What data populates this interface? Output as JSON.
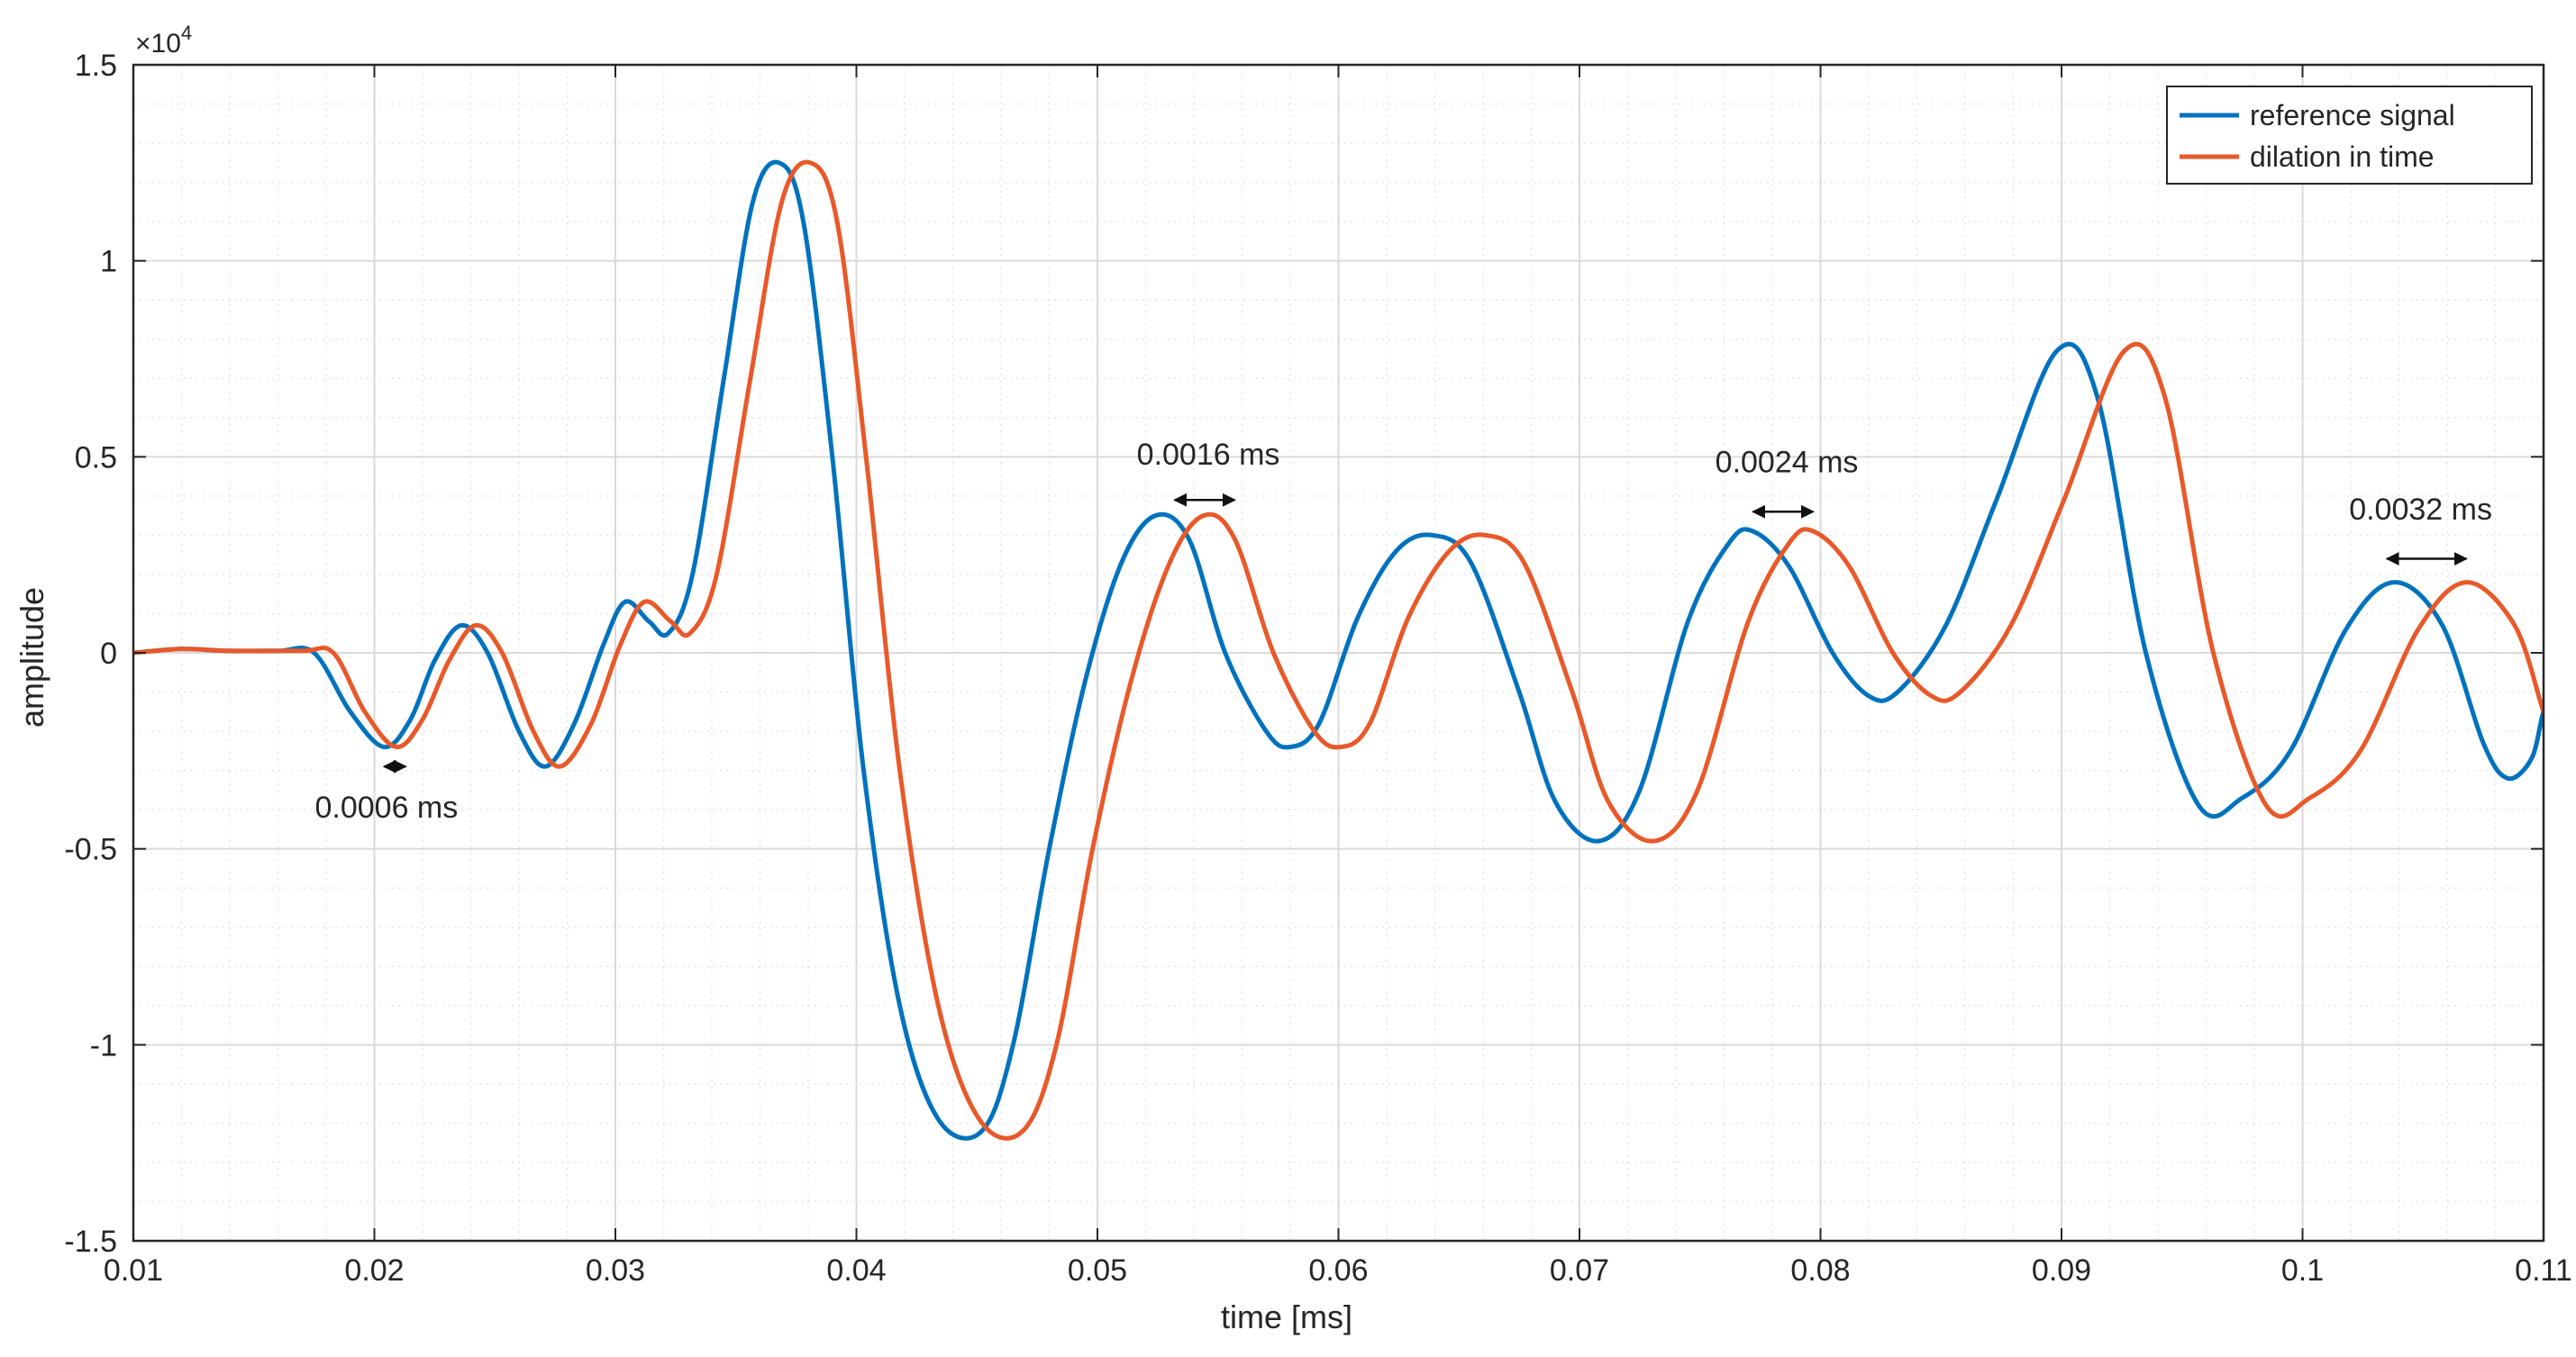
{
  "chart_data": {
    "type": "line",
    "title": "",
    "xlabel": "time [ms]",
    "ylabel": "amplitude",
    "xlim": [
      0.01,
      0.11
    ],
    "ylim": [
      -15000,
      15000
    ],
    "y_exponent_label": "×10",
    "y_exponent_power": "4",
    "x_ticks": [
      0.01,
      0.02,
      0.03,
      0.04,
      0.05,
      0.06,
      0.07,
      0.08,
      0.09,
      0.1,
      0.11
    ],
    "x_tick_labels": [
      "0.01",
      "0.02",
      "0.03",
      "0.04",
      "0.05",
      "0.06",
      "0.07",
      "0.08",
      "0.09",
      "0.1",
      "0.11"
    ],
    "y_ticks": [
      -15000,
      -10000,
      -5000,
      0,
      5000,
      10000,
      15000
    ],
    "y_tick_labels": [
      "-1.5",
      "-1",
      "-0.5",
      "0",
      "0.5",
      "1",
      "1.5"
    ],
    "grid": true,
    "minor_grid": true,
    "legend_position": "top-right",
    "series": [
      {
        "name": "reference signal",
        "color": "#0072BD",
        "points": [
          [
            0.01,
            0
          ],
          [
            0.012,
            100
          ],
          [
            0.014,
            50
          ],
          [
            0.016,
            50
          ],
          [
            0.0175,
            0
          ],
          [
            0.019,
            -1500
          ],
          [
            0.0204,
            -2400
          ],
          [
            0.0215,
            -1700
          ],
          [
            0.0225,
            -200
          ],
          [
            0.0236,
            700
          ],
          [
            0.0247,
            0
          ],
          [
            0.026,
            -2000
          ],
          [
            0.0271,
            -2900
          ],
          [
            0.0283,
            -1800
          ],
          [
            0.0295,
            200
          ],
          [
            0.0304,
            1300
          ],
          [
            0.0314,
            800
          ],
          [
            0.0322,
            500
          ],
          [
            0.0332,
            2000
          ],
          [
            0.0345,
            7000
          ],
          [
            0.0357,
            11500
          ],
          [
            0.0368,
            12500
          ],
          [
            0.0378,
            11000
          ],
          [
            0.039,
            5000
          ],
          [
            0.0403,
            -3000
          ],
          [
            0.0418,
            -9000
          ],
          [
            0.0434,
            -11900
          ],
          [
            0.0452,
            -12200
          ],
          [
            0.0465,
            -10000
          ],
          [
            0.048,
            -5000
          ],
          [
            0.0495,
            -700
          ],
          [
            0.051,
            2300
          ],
          [
            0.0524,
            3500
          ],
          [
            0.0538,
            2900
          ],
          [
            0.0553,
            0
          ],
          [
            0.057,
            -2000
          ],
          [
            0.058,
            -2400
          ],
          [
            0.0592,
            -1800
          ],
          [
            0.0608,
            900
          ],
          [
            0.0624,
            2600
          ],
          [
            0.0639,
            3000
          ],
          [
            0.0655,
            2300
          ],
          [
            0.0675,
            -1000
          ],
          [
            0.069,
            -3800
          ],
          [
            0.0708,
            -4800
          ],
          [
            0.0725,
            -3500
          ],
          [
            0.0745,
            800
          ],
          [
            0.0762,
            2800
          ],
          [
            0.0772,
            3100
          ],
          [
            0.0787,
            2200
          ],
          [
            0.0805,
            0
          ],
          [
            0.082,
            -1100
          ],
          [
            0.0832,
            -1000
          ],
          [
            0.0852,
            700
          ],
          [
            0.0873,
            3900
          ],
          [
            0.0898,
            7700
          ],
          [
            0.0915,
            6500
          ],
          [
            0.0935,
            0
          ],
          [
            0.0957,
            -3900
          ],
          [
            0.0975,
            -3700
          ],
          [
            0.0995,
            -2500
          ],
          [
            0.1018,
            600
          ],
          [
            0.1038,
            1800
          ],
          [
            0.1058,
            700
          ],
          [
            0.1075,
            -2300
          ],
          [
            0.1085,
            -3200
          ],
          [
            0.1095,
            -2700
          ],
          [
            0.1102,
            -1800
          ],
          [
            0.1108,
            -1500
          ],
          [
            0.11,
            -1500
          ]
        ]
      },
      {
        "name": "dilation in time",
        "color": "#E8592A",
        "points": [
          [
            0.01,
            0
          ],
          [
            0.012,
            100
          ],
          [
            0.014,
            50
          ],
          [
            0.017,
            50
          ],
          [
            0.0183,
            0
          ],
          [
            0.0196,
            -1500
          ],
          [
            0.0209,
            -2400
          ],
          [
            0.022,
            -1700
          ],
          [
            0.0231,
            -200
          ],
          [
            0.0242,
            700
          ],
          [
            0.0253,
            0
          ],
          [
            0.0266,
            -2000
          ],
          [
            0.0277,
            -2900
          ],
          [
            0.029,
            -1800
          ],
          [
            0.0302,
            200
          ],
          [
            0.0312,
            1300
          ],
          [
            0.0323,
            800
          ],
          [
            0.0331,
            500
          ],
          [
            0.0342,
            2000
          ],
          [
            0.0356,
            7000
          ],
          [
            0.0369,
            11500
          ],
          [
            0.0381,
            12500
          ],
          [
            0.0392,
            11000
          ],
          [
            0.0404,
            5000
          ],
          [
            0.0418,
            -3000
          ],
          [
            0.0434,
            -9000
          ],
          [
            0.0451,
            -11900
          ],
          [
            0.0469,
            -12200
          ],
          [
            0.0483,
            -10000
          ],
          [
            0.0498,
            -5000
          ],
          [
            0.0514,
            -700
          ],
          [
            0.053,
            2300
          ],
          [
            0.0544,
            3500
          ],
          [
            0.0557,
            2900
          ],
          [
            0.0573,
            0
          ],
          [
            0.059,
            -2000
          ],
          [
            0.0601,
            -2400
          ],
          [
            0.0613,
            -1800
          ],
          [
            0.0629,
            900
          ],
          [
            0.0646,
            2600
          ],
          [
            0.0661,
            3000
          ],
          [
            0.0677,
            2300
          ],
          [
            0.0697,
            -1000
          ],
          [
            0.0712,
            -3800
          ],
          [
            0.0731,
            -4800
          ],
          [
            0.0749,
            -3500
          ],
          [
            0.077,
            800
          ],
          [
            0.0787,
            2800
          ],
          [
            0.0797,
            3100
          ],
          [
            0.0812,
            2200
          ],
          [
            0.083,
            0
          ],
          [
            0.0846,
            -1100
          ],
          [
            0.0858,
            -1000
          ],
          [
            0.0879,
            700
          ],
          [
            0.0901,
            3900
          ],
          [
            0.0926,
            7700
          ],
          [
            0.0943,
            6500
          ],
          [
            0.0963,
            0
          ],
          [
            0.0985,
            -3900
          ],
          [
            0.1003,
            -3700
          ],
          [
            0.1024,
            -2500
          ],
          [
            0.1048,
            600
          ],
          [
            0.1068,
            1800
          ],
          [
            0.1088,
            700
          ],
          [
            0.1102,
            -1500
          ],
          [
            0.11,
            -1500
          ]
        ]
      }
    ],
    "annotations": [
      {
        "text": "0.0006 ms",
        "arrow_x": [
          0.0204,
          0.0213
        ],
        "arrow_y": -2900,
        "label_x": 0.0205,
        "label_y": -4200
      },
      {
        "text": "0.0016 ms",
        "arrow_x": [
          0.0532,
          0.0557
        ],
        "arrow_y": 3900,
        "label_x": 0.0546,
        "label_y": 4800
      },
      {
        "text": "0.0024 ms",
        "arrow_x": [
          0.0772,
          0.0797
        ],
        "arrow_y": 3600,
        "label_x": 0.0786,
        "label_y": 4600
      },
      {
        "text": "0.0032 ms",
        "arrow_x": [
          0.1035,
          0.1068
        ],
        "arrow_y": 2400,
        "label_x": 0.1049,
        "label_y": 3400
      }
    ]
  }
}
